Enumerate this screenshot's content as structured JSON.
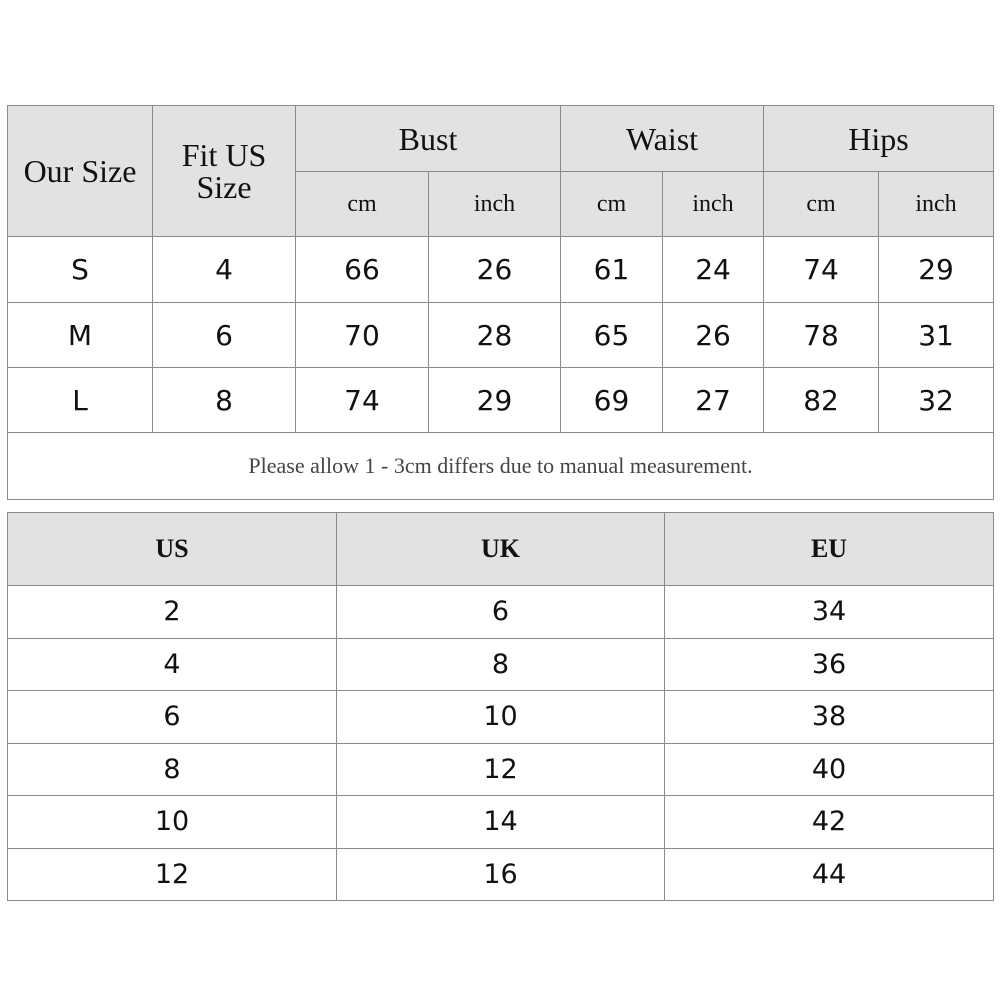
{
  "measurements": {
    "headers": {
      "our_size": "Our Size",
      "fit_us_size_line1": "Fit US",
      "fit_us_size_line2": "Size",
      "bust": "Bust",
      "waist": "Waist",
      "hips": "Hips",
      "units": [
        "cm",
        "inch",
        "cm",
        "inch",
        "cm",
        "inch"
      ]
    },
    "rows": [
      [
        "S",
        "4",
        "66",
        "26",
        "61",
        "24",
        "74",
        "29"
      ],
      [
        "M",
        "6",
        "70",
        "28",
        "65",
        "26",
        "78",
        "31"
      ],
      [
        "L",
        "8",
        "74",
        "29",
        "69",
        "27",
        "82",
        "32"
      ]
    ],
    "note": "Please allow 1 - 3cm differs due to manual measurement."
  },
  "conversion": {
    "headers": [
      "US",
      "UK",
      "EU"
    ],
    "rows": [
      [
        "2",
        "6",
        "34"
      ],
      [
        "4",
        "8",
        "36"
      ],
      [
        "6",
        "10",
        "38"
      ],
      [
        "8",
        "12",
        "40"
      ],
      [
        "10",
        "14",
        "42"
      ],
      [
        "12",
        "16",
        "44"
      ]
    ]
  },
  "colors": {
    "header_bg": "#e2e2e2",
    "border": "#8a8a8a"
  }
}
